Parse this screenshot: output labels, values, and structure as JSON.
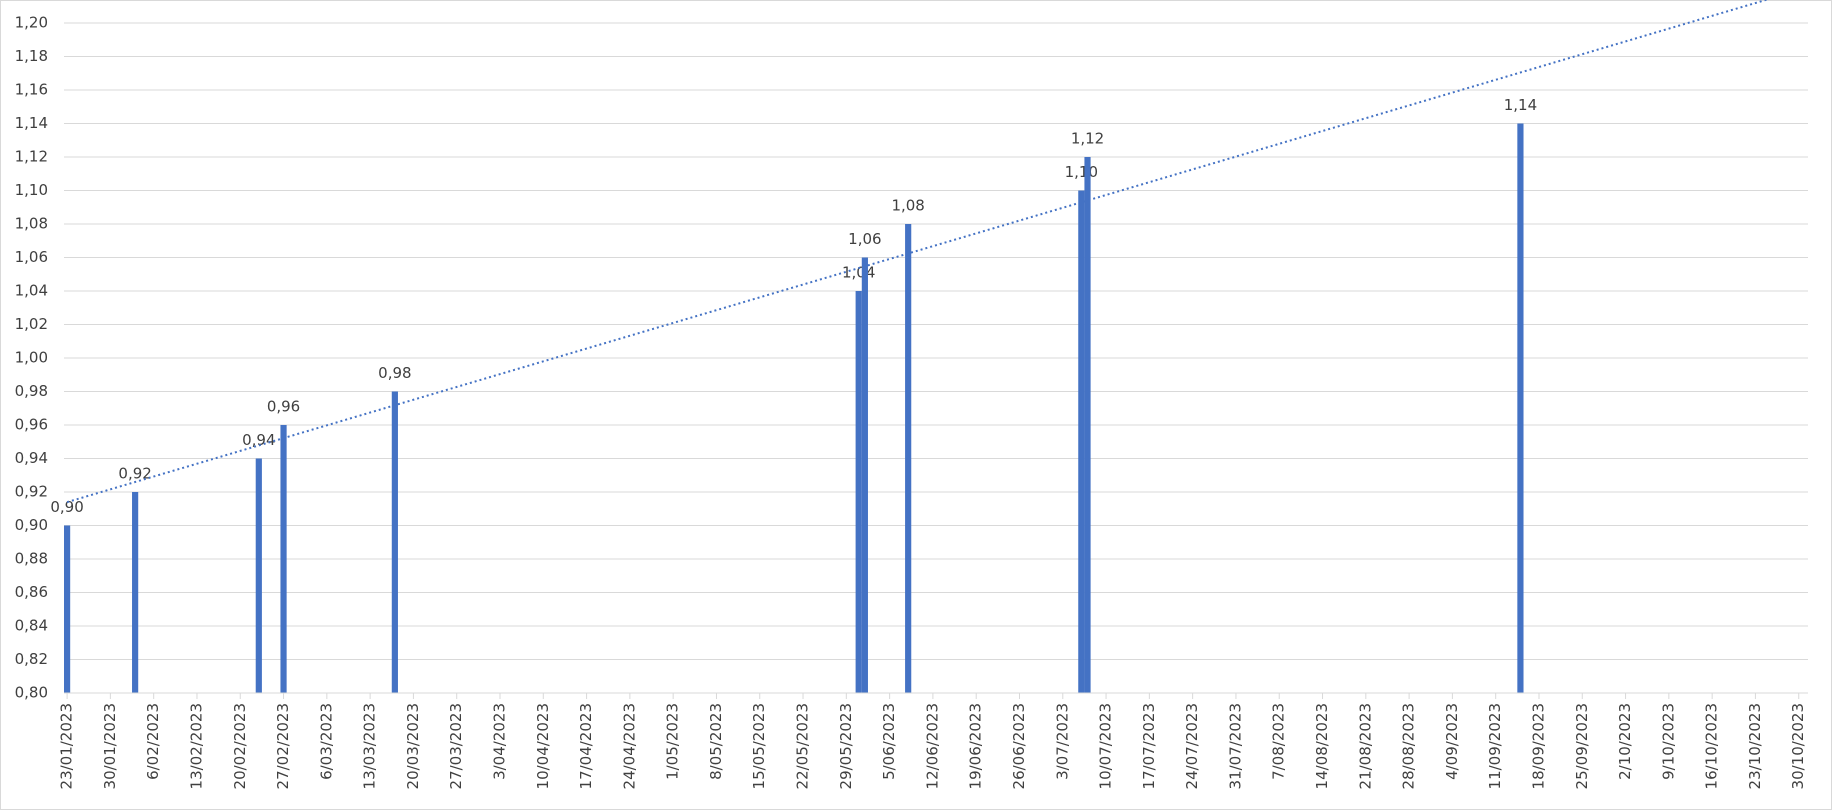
{
  "chart_data": {
    "type": "bar",
    "x": [
      "23/01/2023",
      "3/02/2023",
      "23/02/2023",
      "27/02/2023",
      "17/03/2023",
      "31/05/2023",
      "1/06/2023",
      "8/06/2023",
      "6/07/2023",
      "7/07/2023",
      "15/09/2023"
    ],
    "values": [
      0.9,
      0.92,
      0.94,
      0.96,
      0.98,
      1.04,
      1.06,
      1.08,
      1.1,
      1.12,
      1.14
    ],
    "value_labels": [
      "0,90",
      "0,92",
      "0,94",
      "0,96",
      "0,98",
      "1,04",
      "1,06",
      "1,08",
      "1,10",
      "1,12",
      "1,14"
    ],
    "color": "#4472c4",
    "trendline": "linear",
    "trendline_color": "#4472c4",
    "xlim": [
      "23/01/2023",
      "31/10/2023"
    ],
    "xticks": [
      "23/01/2023",
      "30/01/2023",
      "6/02/2023",
      "13/02/2023",
      "20/02/2023",
      "27/02/2023",
      "6/03/2023",
      "13/03/2023",
      "20/03/2023",
      "27/03/2023",
      "3/04/2023",
      "10/04/2023",
      "17/04/2023",
      "24/04/2023",
      "1/05/2023",
      "8/05/2023",
      "15/05/2023",
      "22/05/2023",
      "29/05/2023",
      "5/06/2023",
      "12/06/2023",
      "19/06/2023",
      "26/06/2023",
      "3/07/2023",
      "10/07/2023",
      "17/07/2023",
      "24/07/2023",
      "31/07/2023",
      "7/08/2023",
      "14/08/2023",
      "21/08/2023",
      "28/08/2023",
      "4/09/2023",
      "11/09/2023",
      "18/09/2023",
      "25/09/2023",
      "2/10/2023",
      "9/10/2023",
      "16/10/2023",
      "23/10/2023",
      "30/10/2023"
    ],
    "ylim": [
      0.8,
      1.2
    ],
    "yticks": [
      {
        "value": 0.8,
        "label": "0,80"
      },
      {
        "value": 0.82,
        "label": "0,82"
      },
      {
        "value": 0.84,
        "label": "0,84"
      },
      {
        "value": 0.86,
        "label": "0,86"
      },
      {
        "value": 0.88,
        "label": "0,88"
      },
      {
        "value": 0.9,
        "label": "0,90"
      },
      {
        "value": 0.92,
        "label": "0,92"
      },
      {
        "value": 0.94,
        "label": "0,94"
      },
      {
        "value": 0.96,
        "label": "0,96"
      },
      {
        "value": 0.98,
        "label": "0,98"
      },
      {
        "value": 1.0,
        "label": "1,00"
      },
      {
        "value": 1.02,
        "label": "1,02"
      },
      {
        "value": 1.04,
        "label": "1,04"
      },
      {
        "value": 1.06,
        "label": "1,06"
      },
      {
        "value": 1.08,
        "label": "1,08"
      },
      {
        "value": 1.1,
        "label": "1,10"
      },
      {
        "value": 1.12,
        "label": "1,12"
      },
      {
        "value": 1.14,
        "label": "1,14"
      },
      {
        "value": 1.16,
        "label": "1,16"
      },
      {
        "value": 1.18,
        "label": "1,18"
      },
      {
        "value": 1.2,
        "label": "1,20"
      }
    ],
    "grid": true
  }
}
